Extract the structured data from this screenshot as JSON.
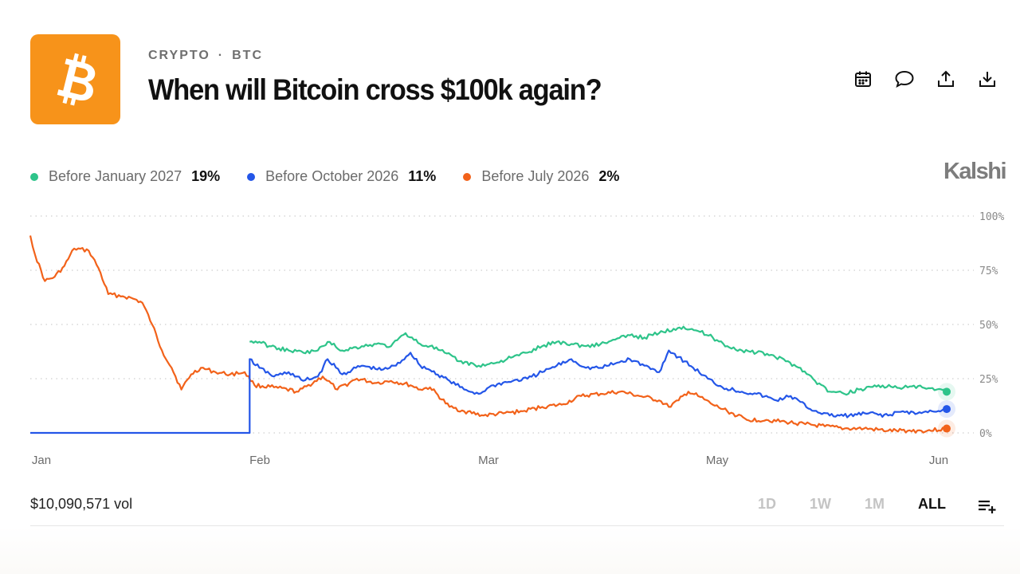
{
  "header": {
    "category": "CRYPTO",
    "subcategory": "BTC",
    "title": "When will Bitcoin cross $100k again?",
    "logo_icon": "bitcoin-icon",
    "logo_color": "#f7931a"
  },
  "actions": [
    {
      "name": "calendar-icon"
    },
    {
      "name": "comment-icon"
    },
    {
      "name": "share-icon"
    },
    {
      "name": "download-icon"
    }
  ],
  "legend": [
    {
      "label": "Before January 2027",
      "value": "19%",
      "color": "#2ec48a"
    },
    {
      "label": "Before October 2026",
      "value": "11%",
      "color": "#2456e8"
    },
    {
      "label": "Before July 2026",
      "value": "2%",
      "color": "#f2621a"
    }
  ],
  "brand": "Kalshi",
  "footer": {
    "volume": "$10,090,571 vol",
    "ranges": [
      "1D",
      "1W",
      "1M",
      "ALL"
    ],
    "active_range": "ALL",
    "list_icon": "playlist-add-icon"
  },
  "chart_data": {
    "type": "line",
    "x_ticks": [
      "Jan",
      "Feb",
      "Mar",
      "May",
      "Jun"
    ],
    "y_ticks": [
      "100%",
      "75%",
      "50%",
      "25%",
      "0%"
    ],
    "ylim": [
      0,
      100
    ],
    "grid": true,
    "series": [
      {
        "name": "Before July 2026",
        "color": "#f2621a",
        "points": [
          [
            "Jan 1",
            91
          ],
          [
            "Jan 2",
            82
          ],
          [
            "Jan 4",
            70
          ],
          [
            "Jan 6",
            72
          ],
          [
            "Jan 8",
            77
          ],
          [
            "Jan 10",
            85
          ],
          [
            "Jan 13",
            84
          ],
          [
            "Jan 15",
            76
          ],
          [
            "Jan 17",
            64
          ],
          [
            "Jan 20",
            63
          ],
          [
            "Jan 22",
            62
          ],
          [
            "Jan 24",
            60
          ],
          [
            "Jan 26",
            50
          ],
          [
            "Jan 28",
            38
          ],
          [
            "Jan 30",
            30
          ],
          [
            "Feb 1",
            20
          ],
          [
            "Feb 3",
            27
          ],
          [
            "Feb 5",
            30
          ],
          [
            "Feb 8",
            28
          ],
          [
            "Feb 11",
            27
          ],
          [
            "Feb 14",
            28
          ],
          [
            "Feb 16",
            22
          ],
          [
            "Feb 20",
            21
          ],
          [
            "Feb 25",
            19
          ],
          [
            "Mar 2",
            26
          ],
          [
            "Mar 5",
            20
          ],
          [
            "Mar 9",
            25
          ],
          [
            "Mar 13",
            23
          ],
          [
            "Mar 16",
            24
          ],
          [
            "Mar 20",
            22
          ],
          [
            "Mar 22",
            20
          ],
          [
            "Mar 24",
            21
          ],
          [
            "Mar 28",
            12
          ],
          [
            "Mar 31",
            10
          ],
          [
            "Apr 4",
            8
          ],
          [
            "Apr 8",
            9
          ],
          [
            "Apr 12",
            10
          ],
          [
            "Apr 16",
            12
          ],
          [
            "Apr 20",
            13
          ],
          [
            "Apr 24",
            17
          ],
          [
            "Apr 28",
            18
          ],
          [
            "May 2",
            19
          ],
          [
            "May 6",
            17
          ],
          [
            "May 10",
            15
          ],
          [
            "May 12",
            12
          ],
          [
            "May 14",
            15
          ],
          [
            "May 16",
            19
          ],
          [
            "May 18",
            17
          ],
          [
            "May 21",
            13
          ],
          [
            "May 24",
            10
          ],
          [
            "May 28",
            6
          ],
          [
            "Jun 1",
            6
          ],
          [
            "Jun 5",
            5
          ],
          [
            "Jun 9",
            4
          ],
          [
            "Jun 13",
            3
          ],
          [
            "Jun 17",
            2
          ],
          [
            "Jun 21",
            2
          ],
          [
            "Jun 26",
            1
          ],
          [
            "Jun 30",
            1
          ],
          [
            "Jul 4",
            1
          ],
          [
            "Jul 8",
            2
          ]
        ]
      },
      {
        "name": "Before October 2026",
        "color": "#2456e8",
        "points": [
          [
            "Jan 1",
            0
          ],
          [
            "Feb 15",
            0
          ],
          [
            "Feb 15",
            34
          ],
          [
            "Feb 17",
            30
          ],
          [
            "Feb 20",
            26
          ],
          [
            "Feb 23",
            28
          ],
          [
            "Feb 26",
            24
          ],
          [
            "Mar 1",
            26
          ],
          [
            "Mar 3",
            34
          ],
          [
            "Mar 6",
            27
          ],
          [
            "Mar 10",
            31
          ],
          [
            "Mar 14",
            29
          ],
          [
            "Mar 17",
            31
          ],
          [
            "Mar 20",
            37
          ],
          [
            "Mar 22",
            31
          ],
          [
            "Mar 24",
            29
          ],
          [
            "Mar 28",
            24
          ],
          [
            "Mar 31",
            20
          ],
          [
            "Apr 3",
            18
          ],
          [
            "Apr 6",
            22
          ],
          [
            "Apr 10",
            24
          ],
          [
            "Apr 13",
            25
          ],
          [
            "Apr 16",
            28
          ],
          [
            "Apr 19",
            31
          ],
          [
            "Apr 22",
            34
          ],
          [
            "Apr 25",
            30
          ],
          [
            "Apr 28",
            30
          ],
          [
            "May 1",
            32
          ],
          [
            "May 4",
            34
          ],
          [
            "May 7",
            31
          ],
          [
            "May 10",
            28
          ],
          [
            "May 12",
            38
          ],
          [
            "May 14",
            35
          ],
          [
            "May 17",
            30
          ],
          [
            "May 20",
            25
          ],
          [
            "May 23",
            21
          ],
          [
            "May 27",
            19
          ],
          [
            "May 30",
            18
          ],
          [
            "Jun 3",
            15
          ],
          [
            "Jun 6",
            17
          ],
          [
            "Jun 10",
            11
          ],
          [
            "Jun 14",
            8
          ],
          [
            "Jun 18",
            8
          ],
          [
            "Jun 22",
            9
          ],
          [
            "Jun 26",
            8
          ],
          [
            "Jun 29",
            10
          ],
          [
            "Jul 2",
            9
          ],
          [
            "Jul 5",
            10
          ],
          [
            "Jul 8",
            11
          ]
        ]
      },
      {
        "name": "Before January 2027",
        "color": "#2ec48a",
        "points": [
          [
            "Feb 15",
            42
          ],
          [
            "Feb 17",
            42
          ],
          [
            "Feb 19",
            40
          ],
          [
            "Feb 21",
            39
          ],
          [
            "Feb 23",
            38
          ],
          [
            "Feb 26",
            37
          ],
          [
            "Mar 1",
            38
          ],
          [
            "Mar 3",
            42
          ],
          [
            "Mar 6",
            38
          ],
          [
            "Mar 10",
            40
          ],
          [
            "Mar 13",
            41
          ],
          [
            "Mar 16",
            40
          ],
          [
            "Mar 19",
            46
          ],
          [
            "Mar 22",
            41
          ],
          [
            "Mar 24",
            40
          ],
          [
            "Mar 27",
            37
          ],
          [
            "Mar 30",
            33
          ],
          [
            "Apr 3",
            31
          ],
          [
            "Apr 6",
            32
          ],
          [
            "Apr 10",
            35
          ],
          [
            "Apr 13",
            37
          ],
          [
            "Apr 16",
            40
          ],
          [
            "Apr 19",
            42
          ],
          [
            "Apr 22",
            41
          ],
          [
            "Apr 25",
            40
          ],
          [
            "Apr 28",
            41
          ],
          [
            "May 1",
            43
          ],
          [
            "May 4",
            45
          ],
          [
            "May 7",
            44
          ],
          [
            "May 10",
            46
          ],
          [
            "May 13",
            48
          ],
          [
            "May 15",
            49
          ],
          [
            "May 18",
            47
          ],
          [
            "May 21",
            44
          ],
          [
            "May 24",
            40
          ],
          [
            "May 27",
            38
          ],
          [
            "May 30",
            37
          ],
          [
            "Jun 2",
            36
          ],
          [
            "Jun 5",
            33
          ],
          [
            "Jun 8",
            30
          ],
          [
            "Jun 11",
            24
          ],
          [
            "Jun 14",
            19
          ],
          [
            "Jun 17",
            18
          ],
          [
            "Jun 20",
            20
          ],
          [
            "Jun 24",
            22
          ],
          [
            "Jun 27",
            21
          ],
          [
            "Jun 30",
            21
          ],
          [
            "Jul 3",
            21
          ],
          [
            "Jul 8",
            19
          ]
        ]
      }
    ]
  }
}
